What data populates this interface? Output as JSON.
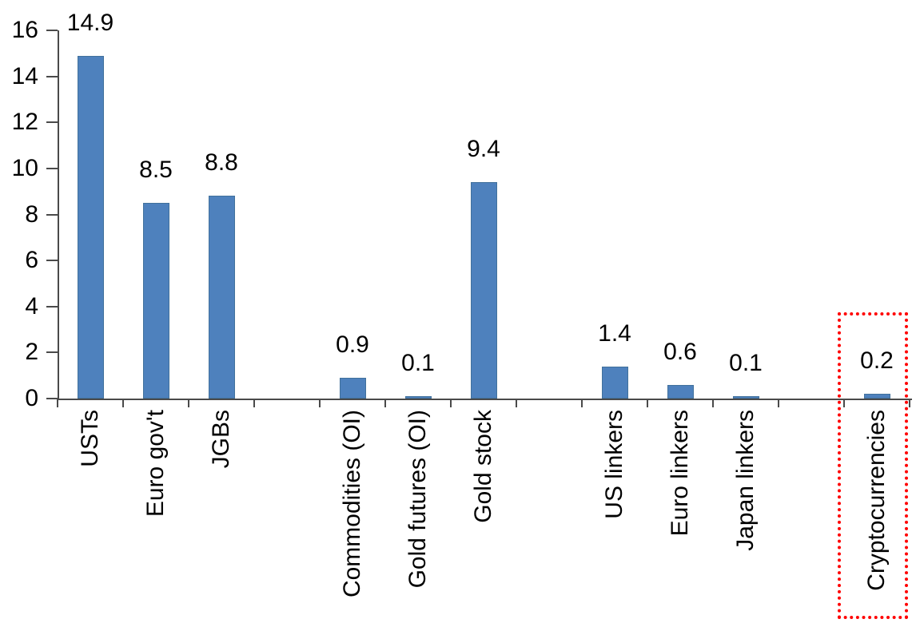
{
  "chart_data": {
    "type": "bar",
    "title": "",
    "categories": [
      "USTs",
      "Euro gov't",
      "JGBs",
      "",
      "Commodities (OI)",
      "Gold futures (OI)",
      "Gold stock",
      "",
      "US linkers",
      "Euro linkers",
      "Japan linkers",
      "",
      "Cryptocurrencies"
    ],
    "values": [
      14.9,
      8.5,
      8.8,
      null,
      0.9,
      0.1,
      9.4,
      null,
      1.4,
      0.6,
      0.1,
      null,
      0.2
    ],
    "data_labels": [
      "14.9",
      "8.5",
      "8.8",
      "",
      "0.9",
      "0.1",
      "9.4",
      "",
      "1.4",
      "0.6",
      "0.1",
      "",
      "0.2"
    ],
    "ylim": [
      0,
      16
    ],
    "yticks": [
      0,
      2,
      4,
      6,
      8,
      10,
      12,
      14,
      16
    ],
    "ytick_labels": [
      "0",
      "2",
      "4",
      "6",
      "8",
      "10",
      "12",
      "14",
      "16"
    ],
    "grid": false,
    "legend": false,
    "bar_color": "#4e81bd",
    "bar_border_color": "#41719c",
    "axis_color": "#4a4a4a",
    "text_color": "#000000",
    "highlight": {
      "category": "Cryptocurrencies",
      "value_label": "0.2",
      "style": "red-dotted-box",
      "color": "#ff0000"
    }
  }
}
